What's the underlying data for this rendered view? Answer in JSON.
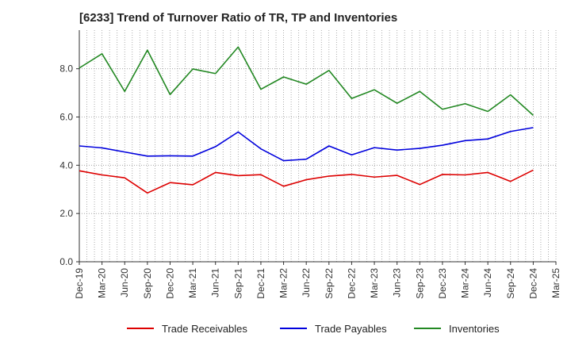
{
  "chart_data": {
    "type": "line",
    "title": "[6233]  Trend of Turnover Ratio of TR, TP and Inventories",
    "x_tick_labels": [
      "Dec-19",
      "Mar-20",
      "Jun-20",
      "Sep-20",
      "Dec-20",
      "Mar-21",
      "Jun-21",
      "Sep-21",
      "Dec-21",
      "Mar-22",
      "Jun-22",
      "Sep-22",
      "Dec-22",
      "Mar-23",
      "Jun-23",
      "Sep-23",
      "Dec-23",
      "Mar-24",
      "Jun-24",
      "Sep-24",
      "Dec-24",
      "Mar-25"
    ],
    "x": [
      "Dec-19",
      "Mar-20",
      "Jun-20",
      "Sep-20",
      "Dec-20",
      "Mar-21",
      "Jun-21",
      "Sep-21",
      "Dec-21",
      "Mar-22",
      "Jun-22",
      "Sep-22",
      "Dec-22",
      "Mar-23",
      "Jun-23",
      "Sep-23",
      "Dec-23",
      "Mar-24",
      "Jun-24",
      "Sep-24",
      "Dec-24"
    ],
    "y_ticks": [
      0.0,
      2.0,
      4.0,
      6.0,
      8.0
    ],
    "y_tick_labels": [
      "0.0",
      "2.0",
      "4.0",
      "6.0",
      "8.0"
    ],
    "ylim": [
      0,
      9.6
    ],
    "grid": true,
    "legend_position": "bottom",
    "series": [
      {
        "name": "Trade Receivables",
        "color": "#dd0000",
        "values": [
          3.77,
          3.6,
          3.48,
          2.85,
          3.28,
          3.19,
          3.7,
          3.57,
          3.61,
          3.13,
          3.4,
          3.55,
          3.62,
          3.51,
          3.58,
          3.2,
          3.62,
          3.6,
          3.7,
          3.33,
          3.8
        ]
      },
      {
        "name": "Trade Payables",
        "color": "#0000dd",
        "values": [
          4.8,
          4.72,
          4.55,
          4.38,
          4.39,
          4.38,
          4.77,
          5.38,
          4.68,
          4.19,
          4.25,
          4.8,
          4.43,
          4.73,
          4.63,
          4.7,
          4.83,
          5.02,
          5.09,
          5.4,
          5.56
        ]
      },
      {
        "name": "Inventories",
        "color": "#228822",
        "values": [
          8.03,
          8.62,
          7.06,
          8.77,
          6.93,
          7.99,
          7.8,
          8.9,
          7.15,
          7.66,
          7.36,
          7.93,
          6.77,
          7.13,
          6.57,
          7.06,
          6.32,
          6.55,
          6.23,
          6.92,
          6.07
        ]
      }
    ]
  }
}
